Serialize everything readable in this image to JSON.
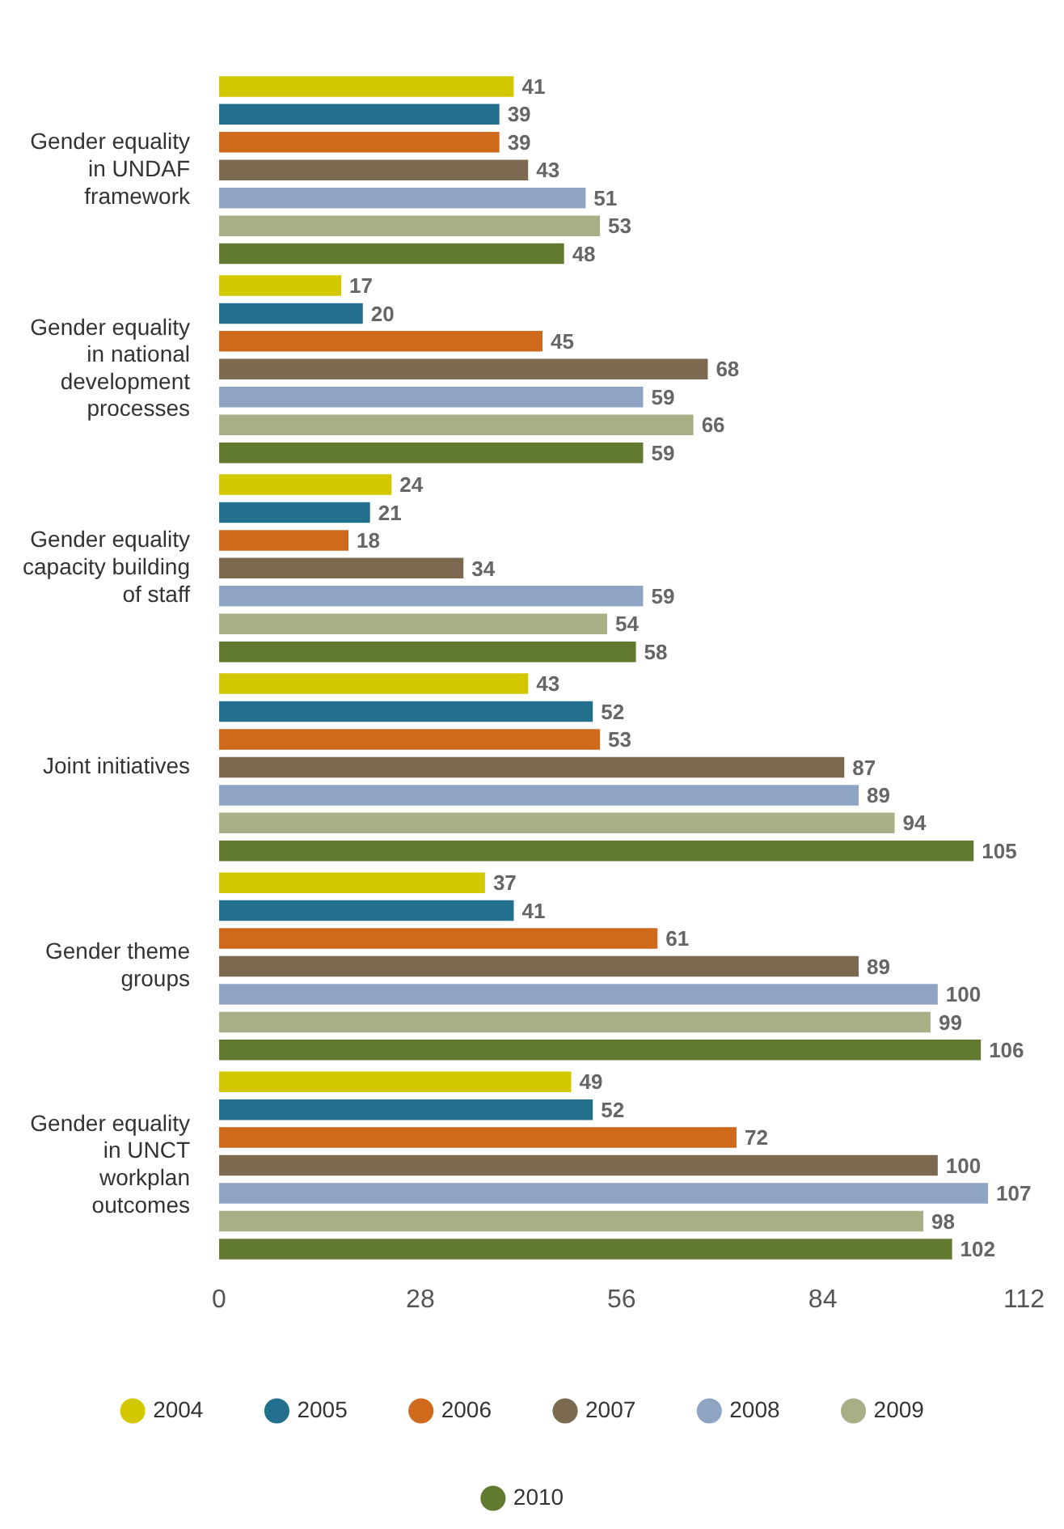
{
  "chart_data": {
    "type": "bar",
    "orientation": "horizontal",
    "categories": [
      "Gender equality in UNDAF framework",
      "Gender equality in national development processes",
      "Gender equality capacity building of staff",
      "Joint initiatives",
      "Gender theme groups",
      "Gender equality in UNCT workplan outcomes"
    ],
    "series": [
      {
        "name": "2004",
        "color": "#d3c800",
        "values": [
          41,
          17,
          24,
          43,
          37,
          49
        ]
      },
      {
        "name": "2005",
        "color": "#226f8e",
        "values": [
          39,
          20,
          21,
          52,
          41,
          52
        ]
      },
      {
        "name": "2006",
        "color": "#cf6a1c",
        "values": [
          39,
          45,
          18,
          53,
          61,
          72
        ]
      },
      {
        "name": "2007",
        "color": "#7b6a50",
        "values": [
          43,
          68,
          34,
          87,
          89,
          100
        ]
      },
      {
        "name": "2008",
        "color": "#8fa4c2",
        "values": [
          51,
          59,
          59,
          89,
          100,
          107
        ]
      },
      {
        "name": "2009",
        "color": "#a9ae86",
        "values": [
          53,
          66,
          54,
          94,
          99,
          98
        ]
      },
      {
        "name": "2010",
        "color": "#617a30",
        "values": [
          48,
          59,
          58,
          105,
          106,
          102
        ]
      }
    ],
    "xlim": [
      0,
      112
    ],
    "xticks": [
      0,
      28,
      56,
      84,
      112
    ],
    "data_labels": true,
    "legend": "bottom",
    "grid": false
  }
}
